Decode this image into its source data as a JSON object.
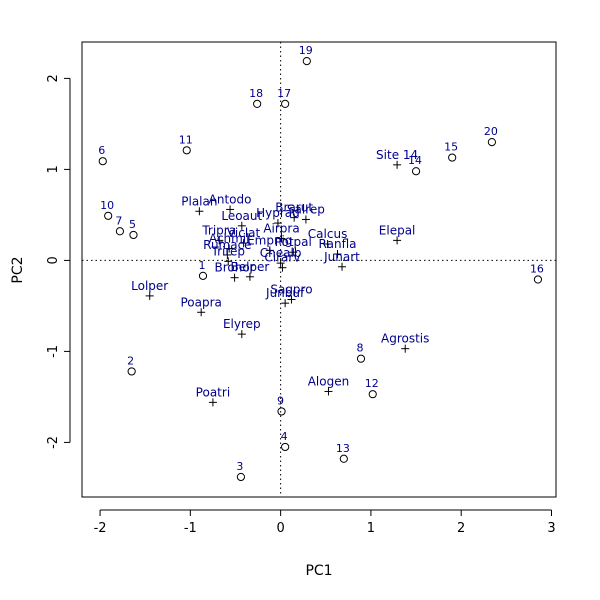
{
  "chart_data": {
    "type": "scatter",
    "title": "",
    "xlabel": "PC1",
    "ylabel": "PC2",
    "xlim": [
      -2.2,
      3.05
    ],
    "ylim": [
      -2.6,
      2.4
    ],
    "x_ticks": [
      -2,
      -1,
      0,
      1,
      2,
      3
    ],
    "y_ticks": [
      -2,
      -1,
      0,
      1,
      2
    ],
    "x_tick_labels": [
      "-2",
      "-1",
      "0",
      "1",
      "2",
      "3"
    ],
    "y_tick_labels": [
      "-2",
      "-1",
      "0",
      "1",
      "2"
    ],
    "reference_lines": {
      "x": 0,
      "y": 0,
      "style": "dotted"
    },
    "grid": false,
    "legend": "none",
    "colors": {
      "label": "#00008b",
      "marker": "#000000",
      "axis": "#000000"
    },
    "series": [
      {
        "marker": "circle",
        "points": [
          {
            "label": "1",
            "x": -0.86,
            "y": -0.17
          },
          {
            "label": "2",
            "x": -1.65,
            "y": -1.22
          },
          {
            "label": "3",
            "x": -0.44,
            "y": -2.38
          },
          {
            "label": "4",
            "x": 0.05,
            "y": -2.05
          },
          {
            "label": "5",
            "x": -1.63,
            "y": 0.28
          },
          {
            "label": "6",
            "x": -1.97,
            "y": 1.09
          },
          {
            "label": "7",
            "x": -1.78,
            "y": 0.32
          },
          {
            "label": "8",
            "x": 0.89,
            "y": -1.08
          },
          {
            "label": "9",
            "x": 0.01,
            "y": -1.66
          },
          {
            "label": "10",
            "x": -1.91,
            "y": 0.49
          },
          {
            "label": "11",
            "x": -1.04,
            "y": 1.21
          },
          {
            "label": "12",
            "x": 1.02,
            "y": -1.47
          },
          {
            "label": "13",
            "x": 0.7,
            "y": -2.18
          },
          {
            "label": "14",
            "x": 1.5,
            "y": 0.98
          },
          {
            "label": "15",
            "x": 1.9,
            "y": 1.13
          },
          {
            "label": "16",
            "x": 2.85,
            "y": -0.21
          },
          {
            "label": "17",
            "x": 0.05,
            "y": 1.72
          },
          {
            "label": "18",
            "x": -0.26,
            "y": 1.72
          },
          {
            "label": "19",
            "x": 0.29,
            "y": 2.19
          },
          {
            "label": "20",
            "x": 2.34,
            "y": 1.3
          }
        ]
      },
      {
        "marker": "plus",
        "points": [
          {
            "label": "Achmil",
            "x": -0.57,
            "y": 0.13
          },
          {
            "label": "Agrostis",
            "x": 1.38,
            "y": -0.97
          },
          {
            "label": "Airpra",
            "x": 0.01,
            "y": 0.24
          },
          {
            "label": "Alogen",
            "x": 0.53,
            "y": -1.44
          },
          {
            "label": "Antodo",
            "x": -0.56,
            "y": 0.56
          },
          {
            "label": "Belper",
            "x": -0.34,
            "y": -0.18
          },
          {
            "label": "Brarut",
            "x": 0.15,
            "y": 0.47
          },
          {
            "label": "Brohor",
            "x": -0.51,
            "y": -0.19
          },
          {
            "label": "Calcus",
            "x": 0.52,
            "y": 0.18
          },
          {
            "label": "Chealb",
            "x": 0.0,
            "y": -0.03
          },
          {
            "label": "Cirarv",
            "x": 0.02,
            "y": -0.08
          },
          {
            "label": "Elepal",
            "x": 1.29,
            "y": 0.22
          },
          {
            "label": "Elyrep",
            "x": -0.43,
            "y": -0.81
          },
          {
            "label": "Empnig",
            "x": -0.12,
            "y": 0.11
          },
          {
            "label": "Hyprad",
            "x": -0.03,
            "y": 0.41
          },
          {
            "label": "Junart",
            "x": 0.68,
            "y": -0.07
          },
          {
            "label": "Junbuf",
            "x": 0.05,
            "y": -0.47
          },
          {
            "label": "Leoaut",
            "x": -0.43,
            "y": 0.38
          },
          {
            "label": "Lolper",
            "x": -1.45,
            "y": -0.39
          },
          {
            "label": "Plalan",
            "x": -0.9,
            "y": 0.54
          },
          {
            "label": "Poapra",
            "x": -0.88,
            "y": -0.57
          },
          {
            "label": "Poatri",
            "x": -0.75,
            "y": -1.56
          },
          {
            "label": "Potpal",
            "x": 0.14,
            "y": 0.09
          },
          {
            "label": "Ranfla",
            "x": 0.63,
            "y": 0.07
          },
          {
            "label": "Rumace",
            "x": -0.59,
            "y": 0.06
          },
          {
            "label": "Sagpro",
            "x": 0.12,
            "y": -0.43
          },
          {
            "label": "Salrep",
            "x": 0.28,
            "y": 0.45
          },
          {
            "label": "Trirep",
            "x": -0.58,
            "y": -0.01
          },
          {
            "label": "Tripra",
            "x": -0.68,
            "y": 0.22
          },
          {
            "label": "Viclat",
            "x": -0.41,
            "y": 0.19
          },
          {
            "label": "Site 14",
            "x": 1.29,
            "y": 1.05
          }
        ]
      }
    ]
  }
}
